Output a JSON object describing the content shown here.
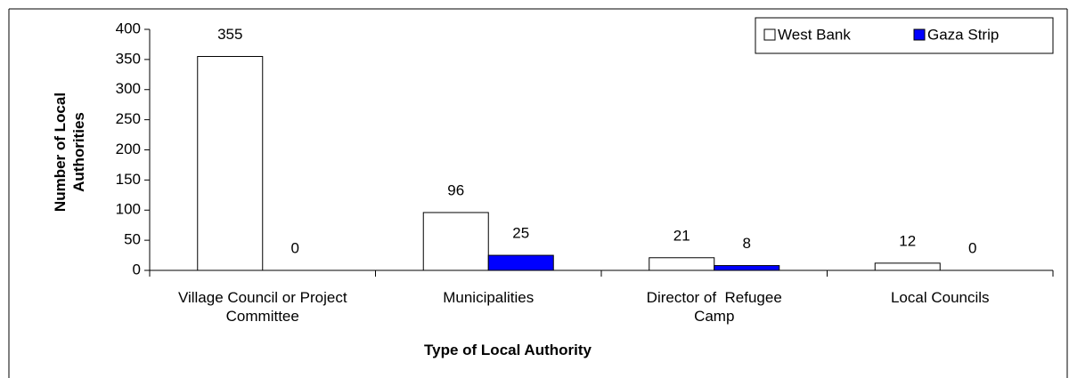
{
  "chart_data": {
    "type": "bar",
    "xlabel": "Type of Local Authority",
    "ylabel": "Number of Local Authorities",
    "categories": [
      "Village Council or Project Committee",
      "Municipalities",
      "Director of  Refugee Camp",
      "Local Councils"
    ],
    "series": [
      {
        "name": "West Bank",
        "color": "#ffffff",
        "values": [
          355,
          96,
          21,
          12
        ]
      },
      {
        "name": "Gaza Strip",
        "color": "#0000ff",
        "values": [
          0,
          25,
          8,
          0
        ]
      }
    ],
    "ylim": [
      0,
      400
    ],
    "yticks": [
      0,
      50,
      100,
      150,
      200,
      250,
      300,
      350,
      400
    ],
    "grid": false,
    "legend": "upper right"
  }
}
